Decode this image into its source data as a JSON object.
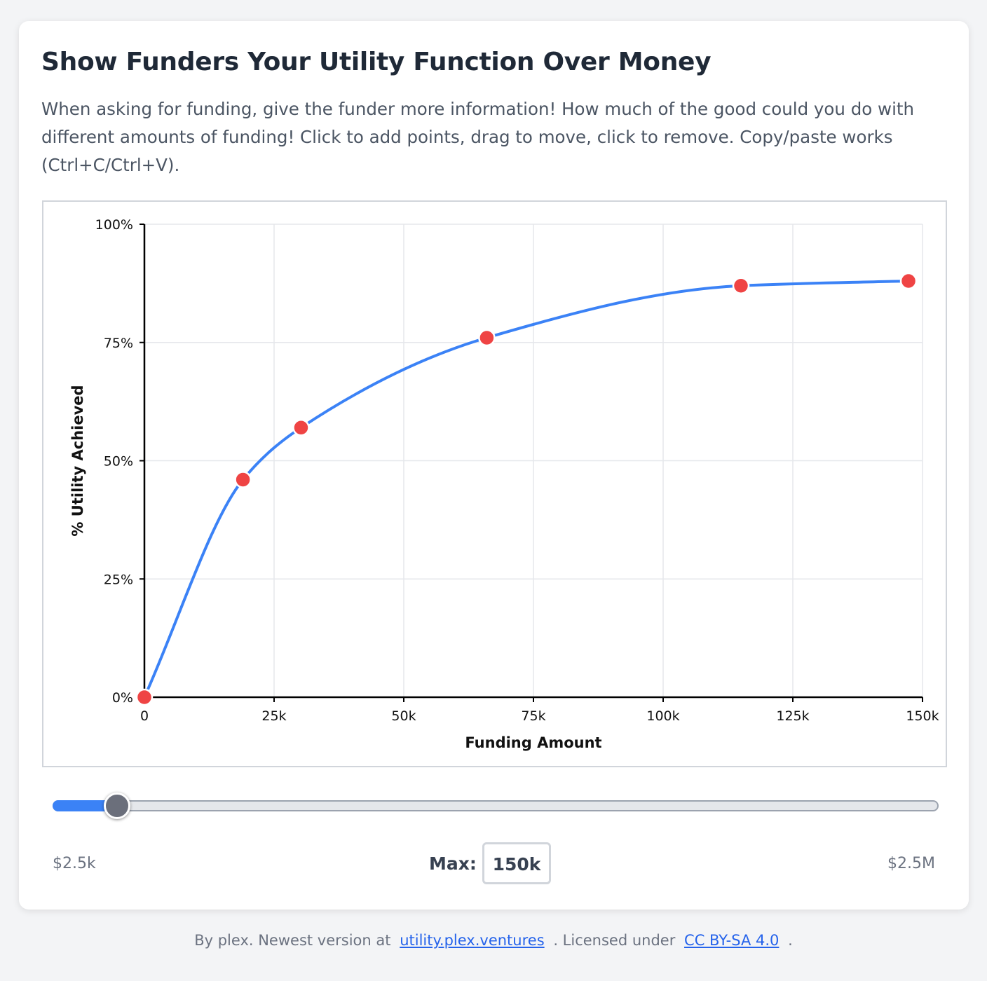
{
  "card": {
    "title": "Show Funders Your Utility Function Over Money",
    "description": "When asking for funding, give the funder more information! How much of the good could you do with different amounts of funding! Click to add points, drag to move, click to remove. Copy/paste works (Ctrl+C/Ctrl+V)."
  },
  "chart_data": {
    "type": "line",
    "xlabel": "Funding Amount",
    "ylabel": "% Utility Achieved",
    "xlim": [
      0,
      150000
    ],
    "ylim": [
      0,
      100
    ],
    "x_ticks": [
      0,
      25000,
      50000,
      75000,
      100000,
      125000,
      150000
    ],
    "x_tick_labels": [
      "0",
      "25k",
      "50k",
      "75k",
      "100k",
      "125k",
      "150k"
    ],
    "y_ticks": [
      0,
      25,
      50,
      75,
      100
    ],
    "y_tick_labels": [
      "0%",
      "25%",
      "50%",
      "75%",
      "100%"
    ],
    "grid": true,
    "line_color": "#3b82f6",
    "point_color": "#ef4444",
    "points": [
      {
        "x": 0,
        "y": 0
      },
      {
        "x": 19000,
        "y": 46
      },
      {
        "x": 30200,
        "y": 57
      },
      {
        "x": 66000,
        "y": 76
      },
      {
        "x": 115000,
        "y": 87
      },
      {
        "x": 147300,
        "y": 88
      }
    ]
  },
  "slider": {
    "min_label": "$2.5k",
    "max_label": "$2.5M",
    "value_fraction": 0.073,
    "fill_color": "#3b82f6"
  },
  "max_control": {
    "label": "Max:",
    "value": "150k"
  },
  "footer": {
    "prefix": "By plex. Newest version at",
    "link1": "utility.plex.ventures",
    "middle": ". Licensed under",
    "link2": "CC BY-SA 4.0",
    "suffix": "."
  }
}
